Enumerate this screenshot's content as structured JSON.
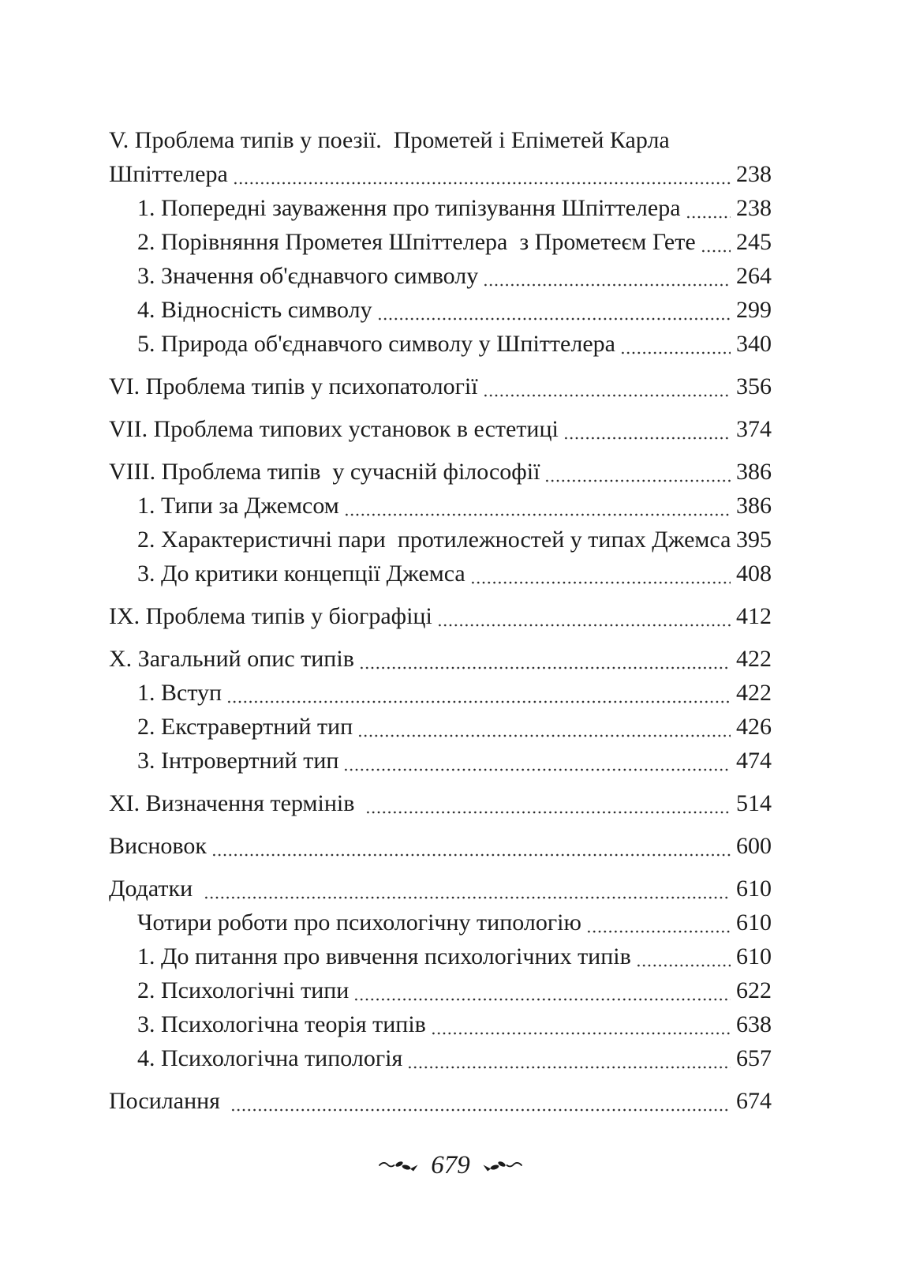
{
  "toc": {
    "entries": [
      {
        "indent": 0,
        "gap_before": false,
        "dots": false,
        "text": "V. Проблема типів у поезії.  Прометей і Епіметей Карла",
        "page": ""
      },
      {
        "indent": 0,
        "gap_before": false,
        "dots": true,
        "text": "Шпіттелера",
        "page": "238"
      },
      {
        "indent": 1,
        "gap_before": false,
        "dots": true,
        "text": "1. Попередні зауваження про типізування Шпіттелера",
        "page": "238"
      },
      {
        "indent": 1,
        "gap_before": false,
        "dots": true,
        "text": "2. Порівняння Прометея Шпіттелера  з Прометеєм Гете",
        "page": "245"
      },
      {
        "indent": 1,
        "gap_before": false,
        "dots": true,
        "text": "3. Значення об'єднавчого символу",
        "page": "264"
      },
      {
        "indent": 1,
        "gap_before": false,
        "dots": true,
        "text": "4. Відносність символу",
        "page": "299"
      },
      {
        "indent": 1,
        "gap_before": false,
        "dots": true,
        "text": "5. Природа об'єднавчого символу у Шпіттелера",
        "page": "340"
      },
      {
        "indent": 0,
        "gap_before": true,
        "dots": true,
        "text": "VI. Проблема типів у психопатології",
        "page": "356"
      },
      {
        "indent": 0,
        "gap_before": true,
        "dots": true,
        "text": "VII. Проблема типових установок в естетиці",
        "page": "374"
      },
      {
        "indent": 0,
        "gap_before": true,
        "dots": true,
        "text": "VIII. Проблема типів  у сучасній філософії",
        "page": "386"
      },
      {
        "indent": 1,
        "gap_before": false,
        "dots": true,
        "text": "1. Типи за Джемсом",
        "page": "386"
      },
      {
        "indent": 1,
        "gap_before": false,
        "dots": false,
        "text": "2. Характеристичні пари  протилежностей у типах Джемса",
        "page": "395"
      },
      {
        "indent": 1,
        "gap_before": false,
        "dots": true,
        "text": "3. До критики концепції Джемса",
        "page": "408"
      },
      {
        "indent": 0,
        "gap_before": true,
        "dots": true,
        "text": "IX. Проблема типів у біографіці",
        "page": "412"
      },
      {
        "indent": 0,
        "gap_before": true,
        "dots": true,
        "text": "X. Загальний опис типів",
        "page": "422"
      },
      {
        "indent": 1,
        "gap_before": false,
        "dots": true,
        "text": "1. Вступ",
        "page": "422"
      },
      {
        "indent": 1,
        "gap_before": false,
        "dots": true,
        "text": "2. Екстравертний тип",
        "page": "426"
      },
      {
        "indent": 1,
        "gap_before": false,
        "dots": true,
        "text": "3. Інтровертний тип",
        "page": "474"
      },
      {
        "indent": 0,
        "gap_before": true,
        "dots": true,
        "text": "XI. Визначення термінів ",
        "page": "514"
      },
      {
        "indent": 0,
        "gap_before": true,
        "dots": true,
        "text": "Висновок",
        "page": "600"
      },
      {
        "indent": 0,
        "gap_before": true,
        "dots": true,
        "text": "Додатки ",
        "page": "610"
      },
      {
        "indent": 1,
        "gap_before": false,
        "dots": true,
        "text": "Чотири роботи про психологічну типологію",
        "page": "610"
      },
      {
        "indent": 1,
        "gap_before": false,
        "dots": true,
        "text": "1. До питання про вивчення психологічних типів",
        "page": "610"
      },
      {
        "indent": 1,
        "gap_before": false,
        "dots": true,
        "text": "2. Психологічні типи",
        "page": "622"
      },
      {
        "indent": 1,
        "gap_before": false,
        "dots": true,
        "text": "3. Психологічна теорія типів",
        "page": "638"
      },
      {
        "indent": 1,
        "gap_before": false,
        "dots": true,
        "text": "4. Психологічна типологія",
        "page": "657"
      },
      {
        "indent": 0,
        "gap_before": true,
        "dots": true,
        "text": "Посилання ",
        "page": "674"
      }
    ]
  },
  "footer": {
    "page_number": "679",
    "left_ornament": "floral-flourish",
    "right_ornament": "floral-flourish"
  }
}
